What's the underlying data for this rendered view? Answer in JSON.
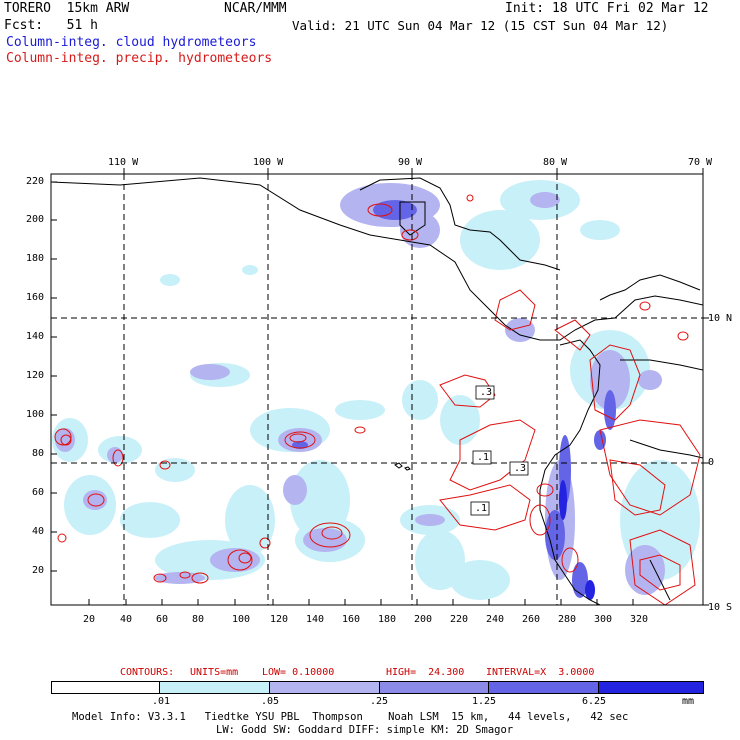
{
  "header": {
    "model": "TORERO  15km ARW",
    "org": "NCAR/MMM",
    "init": "Init: 18 UTC Fri 02 Mar 12",
    "fcst": "Fcst:   51 h",
    "valid": "Valid: 21 UTC Sun 04 Mar 12 (15 CST Sun 04 Mar 12)",
    "legend_cloud": "Column-integ. cloud hydrometeors",
    "legend_precip": "Column-integ. precip. hydrometeors"
  },
  "colors": {
    "cloud_text": "#1a1ad6",
    "precip_text": "#d61a1a",
    "shade_1": "#c8f0f8",
    "shade_2": "#b4b4f0",
    "shade_3": "#8c8ce8",
    "shade_4": "#6464e6",
    "shade_5": "#2424e0",
    "contour": "#e01010"
  },
  "axes": {
    "top_lon": [
      "110 W",
      "100 W",
      "90 W",
      "80 W",
      "70 W"
    ],
    "right_lat": [
      "10 N",
      "0",
      "10 S"
    ],
    "y_ticks": [
      "220",
      "200",
      "180",
      "160",
      "140",
      "120",
      "100",
      "80",
      "60",
      "40",
      "20"
    ],
    "x_ticks": [
      "20",
      "40",
      "60",
      "80",
      "100",
      "120",
      "140",
      "160",
      "180",
      "200",
      "220",
      "240",
      "260",
      "280",
      "300",
      "320"
    ]
  },
  "annotations": {
    "contour_labels": [
      ".3",
      ".1",
      ".3",
      ".1"
    ]
  },
  "contours_info": {
    "label": "CONTOURS:",
    "units": "UNITS=mm",
    "low": "LOW= 0.10000",
    "high": "HIGH=  24.300",
    "interval": "INTERVAL=X  3.0000"
  },
  "colorbar": {
    "labels": [
      ".01",
      ".05",
      ".25",
      "1.25",
      "6.25"
    ],
    "unit": "mm"
  },
  "footer": {
    "line1": "Model Info: V3.3.1   Tiedtke YSU PBL  Thompson    Noah LSM  15 km,   44 levels,   42 sec",
    "line2": "LW: Godd SW: Goddard DIFF: simple KM: 2D Smagor"
  }
}
